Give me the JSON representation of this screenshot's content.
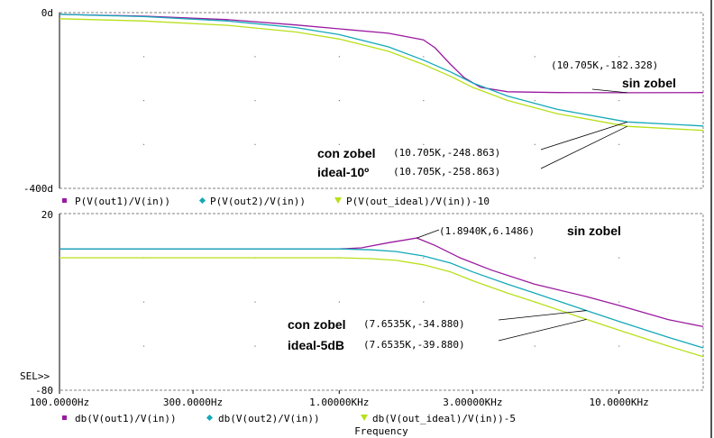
{
  "chart_data": [
    {
      "type": "line",
      "xscale": "log",
      "xlim": [
        100,
        20000
      ],
      "ylim": [
        -400,
        0
      ],
      "y_tick_labels": [
        "0d",
        "-400d"
      ],
      "grid": true,
      "legend": {
        "placement": "bottom",
        "entries": [
          {
            "label": "P(V(out1)/V(in))",
            "color": "#9a1aa0",
            "marker": "square"
          },
          {
            "label": "P(V(out2)/V(in))",
            "color": "#14a9b8",
            "marker": "diamond"
          },
          {
            "label": "P(V(out_ideal)/V(in))-10",
            "color": "#b8e01a",
            "marker": "triangle"
          }
        ]
      },
      "series": [
        {
          "name": "P(V(out1)/V(in))",
          "color": "#9a1aa0",
          "points": [
            [
              100,
              -4
            ],
            [
              200,
              -8
            ],
            [
              400,
              -16
            ],
            [
              700,
              -28
            ],
            [
              1000,
              -37
            ],
            [
              1500,
              -47
            ],
            [
              2000,
              -62
            ],
            [
              2200,
              -80
            ],
            [
              2500,
              -118
            ],
            [
              2800,
              -148
            ],
            [
              3200,
              -170
            ],
            [
              4000,
              -180
            ],
            [
              6000,
              -182
            ],
            [
              10705,
              -182.328
            ],
            [
              20000,
              -182
            ]
          ]
        },
        {
          "name": "P(V(out2)/V(in))",
          "color": "#14a9b8",
          "points": [
            [
              100,
              -4
            ],
            [
              200,
              -9
            ],
            [
              400,
              -19
            ],
            [
              700,
              -34
            ],
            [
              1000,
              -50
            ],
            [
              1500,
              -78
            ],
            [
              2000,
              -108
            ],
            [
              2500,
              -135
            ],
            [
              3000,
              -160
            ],
            [
              4000,
              -190
            ],
            [
              6000,
              -220
            ],
            [
              10705,
              -248.863
            ],
            [
              20000,
              -258
            ]
          ]
        },
        {
          "name": "P(V(out_ideal)/V(in))-10",
          "color": "#b8e01a",
          "points": [
            [
              100,
              -14
            ],
            [
              200,
              -19
            ],
            [
              400,
              -29
            ],
            [
              700,
              -44
            ],
            [
              1000,
              -60
            ],
            [
              1500,
              -88
            ],
            [
              2000,
              -118
            ],
            [
              2500,
              -145
            ],
            [
              3000,
              -170
            ],
            [
              4000,
              -200
            ],
            [
              6000,
              -230
            ],
            [
              10705,
              -258.863
            ],
            [
              20000,
              -268
            ]
          ]
        }
      ],
      "annotations": [
        {
          "readout": "(10.705K,-182.328)",
          "label": "sin zobel",
          "x": 10705,
          "y": -182.328
        },
        {
          "readout": "(10.705K,-248.863)",
          "label": "con zobel",
          "x": 10705,
          "y": -248.863
        },
        {
          "readout": "(10.705K,-258.863)",
          "label": "ideal-10º",
          "x": 10705,
          "y": -258.863
        }
      ]
    },
    {
      "type": "line",
      "xscale": "log",
      "xlim": [
        100,
        20000
      ],
      "ylim": [
        -80,
        20
      ],
      "y_tick_labels": [
        "20",
        "-80"
      ],
      "sel_marker": "SEL>>",
      "x_tick_labels": [
        "100.0000Hz",
        "300.0000Hz",
        "1.00000KHz",
        "3.00000KHz",
        "10.0000KHz"
      ],
      "x_tick_values": [
        100,
        300,
        1000,
        3000,
        10000
      ],
      "xlabel": "Frequency",
      "grid": true,
      "legend": {
        "placement": "bottom",
        "entries": [
          {
            "label": "db(V(out1)/V(in))",
            "color": "#9a1aa0",
            "marker": "square"
          },
          {
            "label": "db(V(out2)/V(in))",
            "color": "#14a9b8",
            "marker": "diamond"
          },
          {
            "label": "db(V(out_ideal)/V(in))-5",
            "color": "#b8e01a",
            "marker": "triangle"
          }
        ]
      },
      "series": [
        {
          "name": "db(V(out1)/V(in))",
          "color": "#9a1aa0",
          "points": [
            [
              100,
              0
            ],
            [
              500,
              0
            ],
            [
              1000,
              0
            ],
            [
              1200,
              0.6
            ],
            [
              1500,
              3.5
            ],
            [
              1894,
              6.1486
            ],
            [
              2200,
              2
            ],
            [
              2700,
              -5
            ],
            [
              3500,
              -12
            ],
            [
              5000,
              -20
            ],
            [
              7653.5,
              -27
            ],
            [
              10000,
              -32
            ],
            [
              15000,
              -40
            ],
            [
              20000,
              -44
            ]
          ]
        },
        {
          "name": "db(V(out2)/V(in))",
          "color": "#14a9b8",
          "points": [
            [
              100,
              0
            ],
            [
              500,
              0
            ],
            [
              1000,
              0
            ],
            [
              1300,
              -0.5
            ],
            [
              1600,
              -1.5
            ],
            [
              2000,
              -4
            ],
            [
              2500,
              -8
            ],
            [
              3000,
              -13
            ],
            [
              4000,
              -20
            ],
            [
              5000,
              -25
            ],
            [
              7653.5,
              -34.88
            ],
            [
              10000,
              -41
            ],
            [
              15000,
              -50
            ],
            [
              20000,
              -56
            ]
          ]
        },
        {
          "name": "db(V(out_ideal)/V(in))-5",
          "color": "#b8e01a",
          "points": [
            [
              100,
              -5
            ],
            [
              500,
              -5
            ],
            [
              1000,
              -5
            ],
            [
              1300,
              -5.5
            ],
            [
              1600,
              -6.5
            ],
            [
              2000,
              -9
            ],
            [
              2500,
              -13
            ],
            [
              3000,
              -18
            ],
            [
              4000,
              -25
            ],
            [
              5000,
              -30
            ],
            [
              7653.5,
              -39.88
            ],
            [
              10000,
              -46
            ],
            [
              15000,
              -55
            ],
            [
              20000,
              -61
            ]
          ]
        }
      ],
      "annotations": [
        {
          "readout": "(1.8940K,6.1486)",
          "label": "sin zobel",
          "x": 1894,
          "y": 6.1486
        },
        {
          "readout": "(7.6535K,-34.880)",
          "label": "con zobel",
          "x": 7653.5,
          "y": -34.88
        },
        {
          "readout": "(7.6535K,-39.880)",
          "label": "ideal-5dB",
          "x": 7653.5,
          "y": -39.88
        }
      ]
    }
  ]
}
